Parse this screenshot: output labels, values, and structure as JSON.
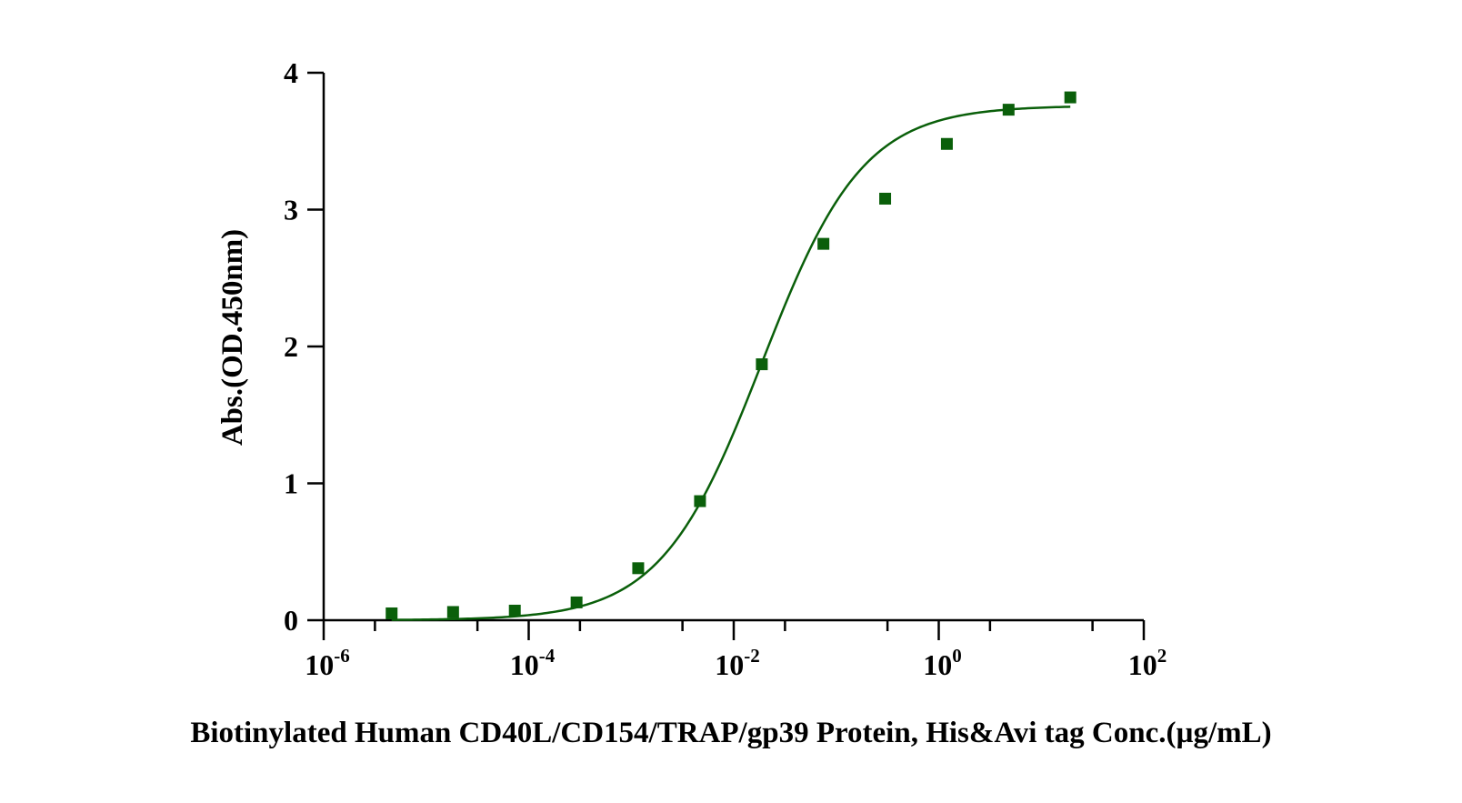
{
  "chart_data": {
    "type": "scatter",
    "title": "",
    "xlabel": "Biotinylated Human CD40L/CD154/TRAP/gp39 Protein, His&Avi tag Conc.(µg/mL)",
    "ylabel": "Abs.(OD.450nm)",
    "xscale": "log",
    "xlim": [
      1e-06,
      100
    ],
    "ylim": [
      0,
      4
    ],
    "x_ticks": [
      {
        "value": 1e-06,
        "base": "10",
        "exp": "-6"
      },
      {
        "value": 0.0001,
        "base": "10",
        "exp": "-4"
      },
      {
        "value": 0.01,
        "base": "10",
        "exp": "-2"
      },
      {
        "value": 1,
        "base": "10",
        "exp": "0"
      },
      {
        "value": 100,
        "base": "10",
        "exp": "2"
      }
    ],
    "y_ticks": [
      0,
      1,
      2,
      3,
      4
    ],
    "grid": false,
    "marker": "square",
    "color": "#0a5f0a",
    "series": [
      {
        "x": [
          4.6e-06,
          1.83e-05,
          7.32e-05,
          0.000293,
          0.00117,
          0.00469,
          0.0188,
          0.075,
          0.3,
          1.2,
          4.8,
          19.2
        ],
        "y": [
          0.05,
          0.06,
          0.07,
          0.13,
          0.38,
          0.87,
          1.87,
          2.75,
          3.08,
          3.48,
          3.73,
          3.82
        ]
      }
    ],
    "fit_curve": {
      "model": "4PL",
      "bottom": 0.0,
      "top": 3.76,
      "ec50": 0.0188,
      "hill": 0.88,
      "x_from": 4.6e-06,
      "x_to": 19.2
    }
  }
}
